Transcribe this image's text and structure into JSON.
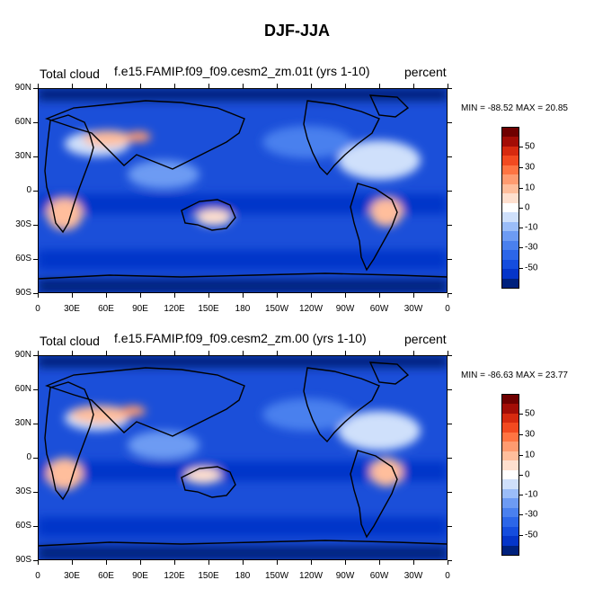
{
  "title": "DJF-JJA",
  "panels": [
    {
      "left_label": "Total cloud",
      "center_label": "f.e15.FAMIP.f09_f09.cesm2_zm.01t (yrs 1-10)",
      "right_label": "percent",
      "min_max": "MIN = -88.52 MAX =  20.85"
    },
    {
      "left_label": "Total cloud",
      "center_label": "f.e15.FAMIP.f09_f09.cesm2_zm.00 (yrs 1-10)",
      "right_label": "percent",
      "min_max": "MIN = -86.63 MAX =  23.77"
    }
  ],
  "chart_data": {
    "type": "heatmap",
    "variable": "Total cloud",
    "units": "percent",
    "xlim": [
      0,
      360
    ],
    "ylim": [
      -90,
      90
    ],
    "lat_ticks": [
      "90N",
      "60N",
      "30N",
      "0",
      "30S",
      "60S",
      "90S"
    ],
    "lon_ticks": [
      "0",
      "30E",
      "60E",
      "90E",
      "120E",
      "150E",
      "180",
      "150W",
      "120W",
      "90W",
      "60W",
      "30W",
      "0"
    ],
    "colorbar": {
      "colors": [
        "#00217d",
        "#0535c9",
        "#154dde",
        "#2c66e8",
        "#4a80ee",
        "#6d9bf3",
        "#9bbdf8",
        "#cfe0fb",
        "#ffffff",
        "#ffe0cf",
        "#ffbe9c",
        "#ff9b70",
        "#ff7442",
        "#f24a20",
        "#d62a0f",
        "#a30d06",
        "#6f0000"
      ],
      "labels": [
        "50",
        "30",
        "10",
        "0",
        "-10",
        "-30",
        "-50"
      ]
    }
  }
}
